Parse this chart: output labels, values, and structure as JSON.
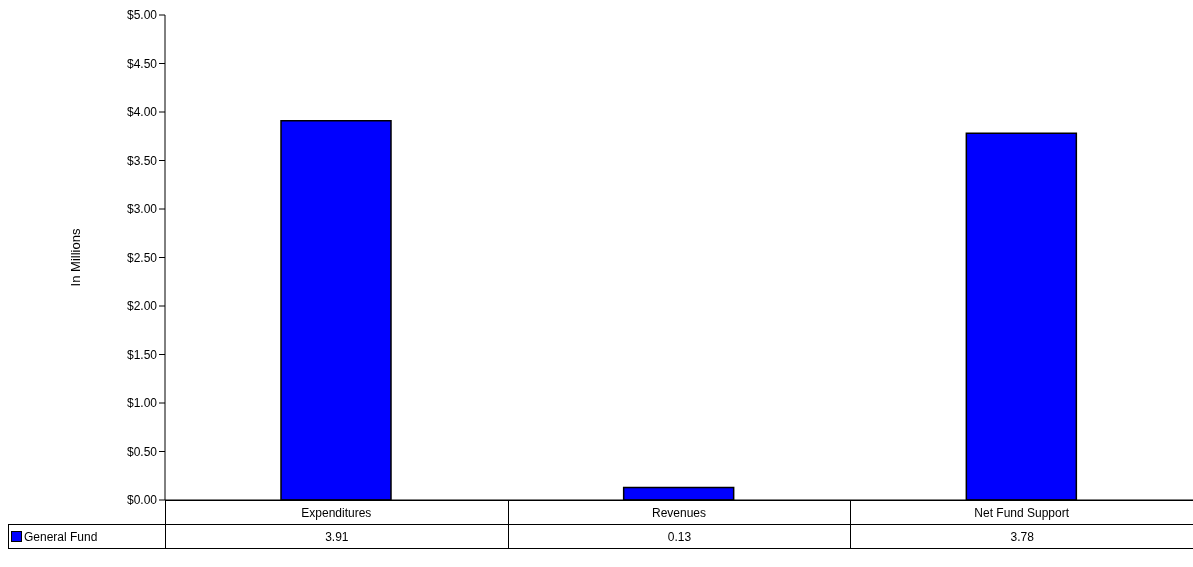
{
  "chart_data": {
    "type": "bar",
    "ylabel": "In Millions",
    "categories": [
      "Expenditures",
      "Revenues",
      "Net Fund Support"
    ],
    "series": [
      {
        "name": "General Fund",
        "color": "#0000ff",
        "values": [
          3.91,
          0.13,
          3.78
        ]
      }
    ],
    "ylim": [
      0,
      5
    ],
    "yticks": [
      {
        "value": 0,
        "label": "$0.00"
      },
      {
        "value": 0.5,
        "label": "$0.50"
      },
      {
        "value": 1,
        "label": "$1.00"
      },
      {
        "value": 1.5,
        "label": "$1.50"
      },
      {
        "value": 2,
        "label": "$2.00"
      },
      {
        "value": 2.5,
        "label": "$2.50"
      },
      {
        "value": 3,
        "label": "$3.00"
      },
      {
        "value": 3.5,
        "label": "$3.50"
      },
      {
        "value": 4,
        "label": "$4.00"
      },
      {
        "value": 4.5,
        "label": "$4.50"
      },
      {
        "value": 5,
        "label": "$5.00"
      }
    ],
    "data_labels": true,
    "legend": "bottom"
  }
}
